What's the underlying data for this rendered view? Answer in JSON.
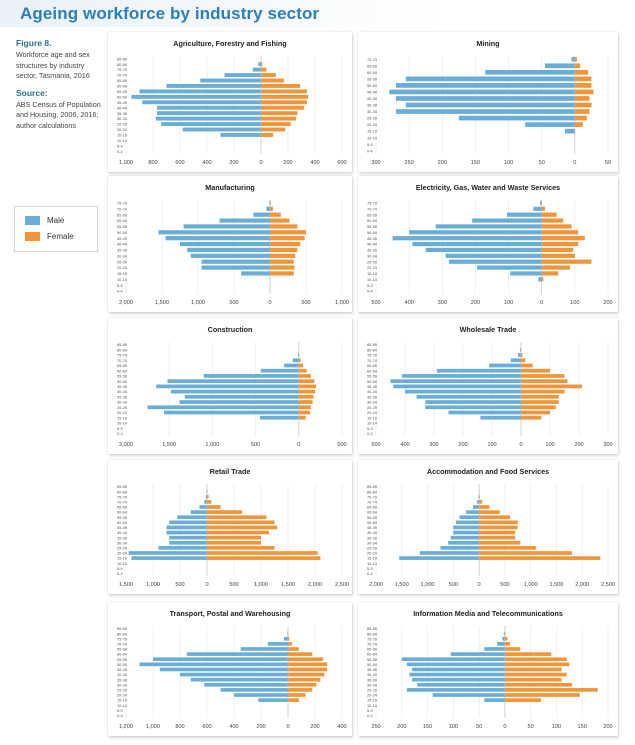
{
  "page": {
    "title": "Ageing workforce by industry sector",
    "figure_label": "Figure 8.",
    "figure_text": "Workforce age and sex structures by industry sector, Tasmania, 2016",
    "source_label": "Source:",
    "source_text": "ABS Census of Population and Housing, 2006, 2016; author calculations"
  },
  "legend": {
    "male_label": "Male",
    "female_label": "Female",
    "male_color": "#6aaed8",
    "female_color": "#f0953a"
  },
  "chart_data": [
    {
      "type": "bar",
      "orientation": "horizontal-population-pyramid",
      "title": "Agriculture, Forestry and Fishing",
      "categories": [
        "85-89",
        "80-84",
        "75-79",
        "70-74",
        "65-69",
        "60-64",
        "55-59",
        "50-54",
        "45-49",
        "40-44",
        "35-39",
        "30-34",
        "25-29",
        "20-24",
        "15-19",
        "10-14",
        "5-9",
        "0-4"
      ],
      "xlim": [
        -1000,
        600
      ],
      "xticks": [
        -1000,
        -800,
        -600,
        -400,
        -200,
        0,
        200,
        400,
        600
      ],
      "xtick_labels": [
        "1,000",
        "800",
        "600",
        "400",
        "200",
        "0",
        "200",
        "400",
        "600"
      ],
      "series": [
        {
          "name": "Male",
          "values": [
            0,
            20,
            60,
            270,
            450,
            700,
            900,
            960,
            880,
            770,
            770,
            780,
            740,
            580,
            300,
            0,
            0,
            0
          ]
        },
        {
          "name": "Female",
          "values": [
            0,
            10,
            40,
            110,
            170,
            290,
            340,
            350,
            340,
            320,
            270,
            260,
            220,
            180,
            90,
            0,
            0,
            0
          ]
        }
      ]
    },
    {
      "type": "bar",
      "orientation": "horizontal-population-pyramid",
      "title": "Mining",
      "categories": [
        "70-74",
        "65-69",
        "60-64",
        "55-59",
        "50-54",
        "45-49",
        "40-44",
        "35-39",
        "30-34",
        "25-29",
        "20-24",
        "15-19",
        "10-14",
        "5-9",
        "0-4"
      ],
      "xlim": [
        -300,
        50
      ],
      "xticks": [
        -300,
        -250,
        -200,
        -150,
        -100,
        -50,
        0,
        50
      ],
      "xtick_labels": [
        "300",
        "250",
        "200",
        "150",
        "100",
        "50",
        "0",
        "50"
      ],
      "series": [
        {
          "name": "Male",
          "values": [
            5,
            45,
            135,
            255,
            270,
            280,
            270,
            255,
            270,
            175,
            75,
            15,
            0,
            0,
            0
          ]
        },
        {
          "name": "Female",
          "values": [
            3,
            8,
            20,
            25,
            25,
            28,
            22,
            25,
            22,
            18,
            12,
            0,
            0,
            0,
            0
          ]
        }
      ]
    },
    {
      "type": "bar",
      "orientation": "horizontal-population-pyramid",
      "title": "Manufacturing",
      "categories": [
        "75-79",
        "70-74",
        "65-69",
        "60-64",
        "55-59",
        "50-54",
        "45-49",
        "40-44",
        "35-39",
        "30-34",
        "25-29",
        "20-24",
        "15-19",
        "10-14",
        "5-9",
        "0-4"
      ],
      "xlim": [
        -2000,
        1000
      ],
      "xticks": [
        -2000,
        -1500,
        -1000,
        -500,
        0,
        500,
        1000
      ],
      "xtick_labels": [
        "2,000",
        "1,500",
        "1,000",
        "500",
        "0",
        "500",
        "1,000"
      ],
      "series": [
        {
          "name": "Male",
          "values": [
            10,
            50,
            230,
            700,
            1200,
            1550,
            1450,
            1250,
            1150,
            1100,
            950,
            950,
            400,
            0,
            0,
            0
          ]
        },
        {
          "name": "Female",
          "values": [
            10,
            40,
            150,
            270,
            380,
            500,
            480,
            420,
            380,
            350,
            330,
            340,
            330,
            0,
            0,
            0
          ]
        }
      ]
    },
    {
      "type": "bar",
      "orientation": "horizontal-population-pyramid",
      "title": "Electricity, Gas, Water and Waste Services",
      "categories": [
        "75-79",
        "70-74",
        "65-69",
        "60-64",
        "55-59",
        "50-54",
        "45-49",
        "40-44",
        "35-39",
        "30-34",
        "25-29",
        "20-24",
        "15-19",
        "10-14",
        "5-9",
        "0-4"
      ],
      "xlim": [
        -500,
        200
      ],
      "xticks": [
        -500,
        -400,
        -300,
        -200,
        -100,
        0,
        100,
        200
      ],
      "xtick_labels": [
        "500",
        "400",
        "300",
        "200",
        "100",
        "0",
        "100",
        "200"
      ],
      "series": [
        {
          "name": "Male",
          "values": [
            5,
            25,
            105,
            210,
            320,
            400,
            450,
            390,
            350,
            290,
            280,
            195,
            95,
            10,
            0,
            0
          ]
        },
        {
          "name": "Female",
          "values": [
            0,
            10,
            45,
            65,
            90,
            110,
            130,
            110,
            95,
            100,
            150,
            85,
            50,
            5,
            0,
            0
          ]
        }
      ]
    },
    {
      "type": "bar",
      "orientation": "horizontal-population-pyramid",
      "title": "Construction",
      "categories": [
        "85-89",
        "80-84",
        "75-79",
        "70-74",
        "65-69",
        "60-64",
        "55-59",
        "50-54",
        "45-49",
        "40-44",
        "35-39",
        "30-34",
        "25-29",
        "20-24",
        "15-19",
        "10-14",
        "5-9",
        "0-4"
      ],
      "xlim": [
        -2000,
        500
      ],
      "xticks": [
        -2000,
        -1500,
        -1000,
        -500,
        0,
        500
      ],
      "xtick_labels": [
        "2,000",
        "1,500",
        "1,000",
        "500",
        "0",
        "500"
      ],
      "series": [
        {
          "name": "Male",
          "values": [
            0,
            0,
            10,
            70,
            170,
            440,
            1100,
            1520,
            1650,
            1480,
            1320,
            1380,
            1750,
            1560,
            450,
            0,
            0,
            0
          ]
        },
        {
          "name": "Female",
          "values": [
            0,
            0,
            5,
            20,
            50,
            90,
            140,
            180,
            200,
            190,
            170,
            160,
            140,
            130,
            80,
            0,
            0,
            0
          ]
        }
      ]
    },
    {
      "type": "bar",
      "orientation": "horizontal-population-pyramid",
      "title": "Wholesale Trade",
      "categories": [
        "85-89",
        "80-84",
        "75-79",
        "70-74",
        "65-69",
        "60-64",
        "55-59",
        "50-54",
        "45-49",
        "40-44",
        "35-39",
        "30-34",
        "25-29",
        "20-24",
        "15-19",
        "10-14",
        "5-9",
        "0-4"
      ],
      "xlim": [
        -500,
        300
      ],
      "xticks": [
        -500,
        -400,
        -300,
        -200,
        -100,
        0,
        100,
        200,
        300
      ],
      "xtick_labels": [
        "500",
        "400",
        "300",
        "200",
        "100",
        "0",
        "100",
        "200",
        "300"
      ],
      "series": [
        {
          "name": "Male",
          "values": [
            0,
            3,
            10,
            35,
            110,
            290,
            410,
            450,
            440,
            400,
            360,
            330,
            330,
            250,
            140,
            0,
            0,
            0
          ]
        },
        {
          "name": "Female",
          "values": [
            0,
            1,
            5,
            15,
            40,
            100,
            150,
            160,
            210,
            150,
            130,
            130,
            120,
            100,
            70,
            0,
            0,
            0
          ]
        }
      ]
    },
    {
      "type": "bar",
      "orientation": "horizontal-population-pyramid",
      "title": "Retail Trade",
      "categories": [
        "85-89",
        "80-84",
        "75-79",
        "70-74",
        "65-69",
        "60-64",
        "55-59",
        "50-54",
        "45-49",
        "40-44",
        "35-39",
        "30-34",
        "25-29",
        "20-24",
        "15-19",
        "10-14",
        "5-9",
        "0-4"
      ],
      "xlim": [
        -1500,
        2500
      ],
      "xticks": [
        -1500,
        -1000,
        -500,
        0,
        500,
        1000,
        1500,
        2000,
        2500
      ],
      "xtick_labels": [
        "1,500",
        "1,000",
        "500",
        "0",
        "500",
        "1,000",
        "1,500",
        "2,000",
        "2,500"
      ],
      "series": [
        {
          "name": "Male",
          "values": [
            0,
            10,
            20,
            50,
            140,
            300,
            550,
            700,
            750,
            750,
            700,
            700,
            900,
            1450,
            1400,
            0,
            0,
            0
          ]
        },
        {
          "name": "Female",
          "values": [
            0,
            10,
            30,
            80,
            250,
            650,
            1100,
            1250,
            1300,
            1150,
            1000,
            1000,
            1250,
            2050,
            2100,
            0,
            0,
            0
          ]
        }
      ]
    },
    {
      "type": "bar",
      "orientation": "horizontal-population-pyramid",
      "title": "Accommodation and Food Services",
      "categories": [
        "85-89",
        "80-84",
        "75-79",
        "70-74",
        "65-69",
        "60-64",
        "55-59",
        "50-54",
        "45-49",
        "40-44",
        "35-39",
        "30-34",
        "25-29",
        "20-24",
        "15-19",
        "10-14",
        "5-9",
        "0-4"
      ],
      "xlim": [
        -2000,
        2500
      ],
      "xticks": [
        -2000,
        -1500,
        -1000,
        -500,
        0,
        500,
        1000,
        1500,
        2000,
        2500
      ],
      "xtick_labels": [
        "2,000",
        "1,500",
        "1,000",
        "500",
        "0",
        "500",
        "1,000",
        "1,500",
        "2,000",
        "2,500"
      ],
      "series": [
        {
          "name": "Male",
          "values": [
            0,
            5,
            10,
            40,
            120,
            250,
            380,
            450,
            500,
            500,
            550,
            600,
            750,
            1150,
            1550,
            0,
            0,
            0
          ]
        },
        {
          "name": "Female",
          "values": [
            0,
            5,
            15,
            60,
            200,
            400,
            600,
            750,
            750,
            700,
            700,
            800,
            1100,
            1800,
            2350,
            0,
            0,
            0
          ]
        }
      ]
    },
    {
      "type": "bar",
      "orientation": "horizontal-population-pyramid",
      "title": "Transport, Postal and Warehousing",
      "categories": [
        "85-89",
        "80-84",
        "75-79",
        "70-74",
        "65-69",
        "60-64",
        "55-59",
        "50-54",
        "45-49",
        "40-44",
        "35-39",
        "30-34",
        "25-29",
        "20-24",
        "15-19",
        "10-14",
        "5-9",
        "0-4"
      ],
      "xlim": [
        -1200,
        400
      ],
      "xticks": [
        -1200,
        -1000,
        -800,
        -600,
        -400,
        -200,
        0,
        200,
        400
      ],
      "xtick_labels": [
        "1,200",
        "1,000",
        "800",
        "600",
        "400",
        "200",
        "0",
        "200",
        "400"
      ],
      "series": [
        {
          "name": "Male",
          "values": [
            0,
            5,
            30,
            150,
            350,
            750,
            1000,
            1100,
            950,
            800,
            720,
            620,
            500,
            400,
            220,
            0,
            0,
            0
          ]
        },
        {
          "name": "Female",
          "values": [
            0,
            2,
            10,
            30,
            80,
            180,
            260,
            290,
            290,
            270,
            240,
            210,
            180,
            130,
            80,
            0,
            0,
            0
          ]
        }
      ]
    },
    {
      "type": "bar",
      "orientation": "horizontal-population-pyramid",
      "title": "Information Media and Telecommunications",
      "categories": [
        "85-89",
        "80-84",
        "75-79",
        "70-74",
        "65-69",
        "60-64",
        "55-59",
        "50-54",
        "45-49",
        "40-44",
        "35-39",
        "30-34",
        "25-29",
        "20-24",
        "15-19",
        "10-14",
        "5-9",
        "0-4"
      ],
      "xlim": [
        -250,
        200
      ],
      "xticks": [
        -250,
        -200,
        -150,
        -100,
        -50,
        0,
        50,
        100,
        150,
        200
      ],
      "xtick_labels": [
        "250",
        "200",
        "150",
        "100",
        "50",
        "0",
        "50",
        "100",
        "150",
        "200"
      ],
      "series": [
        {
          "name": "Male",
          "values": [
            0,
            2,
            5,
            15,
            40,
            105,
            200,
            190,
            180,
            185,
            180,
            170,
            190,
            140,
            40,
            0,
            0,
            0
          ]
        },
        {
          "name": "Female",
          "values": [
            0,
            1,
            5,
            10,
            30,
            90,
            120,
            125,
            110,
            120,
            110,
            130,
            180,
            145,
            70,
            0,
            0,
            0
          ]
        }
      ]
    }
  ]
}
